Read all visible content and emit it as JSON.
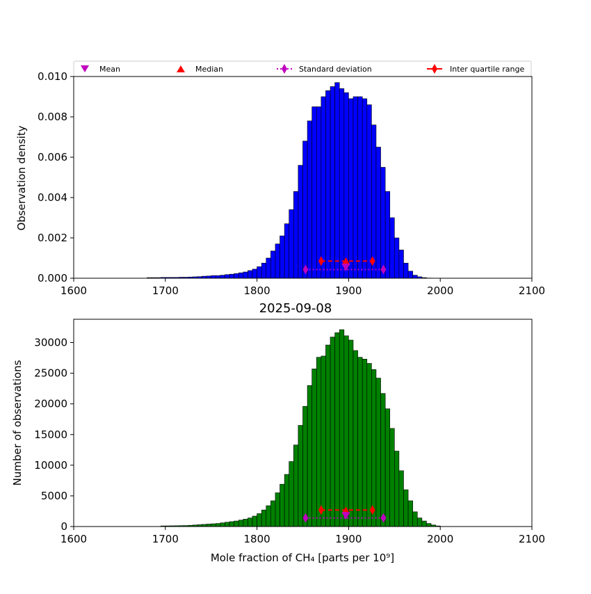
{
  "chart_data": [
    {
      "type": "bar",
      "variant": "histogram",
      "title": "",
      "xlabel": "",
      "ylabel": "Observation density",
      "xlim": [
        1600,
        2100
      ],
      "ylim": [
        0,
        0.01
      ],
      "xticks": [
        "1600",
        "1700",
        "1800",
        "1900",
        "2000",
        "2100"
      ],
      "yticks": [
        "0.000",
        "0.002",
        "0.004",
        "0.006",
        "0.008",
        "0.010"
      ],
      "bar_color": "#0000ff",
      "bin_width": 5,
      "bin_start": 1680,
      "values": [
        3e-05,
        3e-05,
        3e-05,
        4e-05,
        4e-05,
        4e-05,
        4e-05,
        5e-05,
        5e-05,
        6e-05,
        7e-05,
        8e-05,
        0.0001,
        0.00011,
        0.00013,
        0.00013,
        0.00015,
        0.00018,
        0.0002,
        0.00023,
        0.00027,
        0.00031,
        0.00038,
        0.00045,
        0.00057,
        0.00075,
        0.001,
        0.00135,
        0.0017,
        0.0021,
        0.0027,
        0.0034,
        0.0043,
        0.0056,
        0.0068,
        0.0078,
        0.0085,
        0.0085,
        0.009,
        0.0093,
        0.0095,
        0.0097,
        0.0094,
        0.0092,
        0.0089,
        0.009,
        0.009,
        0.0089,
        0.0086,
        0.0076,
        0.0065,
        0.0055,
        0.0043,
        0.003,
        0.002,
        0.0014,
        0.00075,
        0.00035,
        0.00015,
        7e-05,
        3e-05,
        1e-05
      ],
      "markers": {
        "mean": {
          "x": 1897,
          "y": 0.00055
        },
        "median": {
          "x": 1897,
          "y": 0.00083
        },
        "std": {
          "x": [
            1853,
            1938
          ],
          "y": 0.00043
        },
        "iqr": {
          "x": [
            1870,
            1926
          ],
          "y": 0.00085
        }
      }
    },
    {
      "type": "bar",
      "variant": "histogram",
      "title": "2025-09-08",
      "xlabel": "Mole fraction of CH₄ [parts per 10⁹]",
      "ylabel": "Number of observations",
      "xlim": [
        1600,
        2100
      ],
      "ylim": [
        0,
        33800
      ],
      "xticks": [
        "1600",
        "1700",
        "1800",
        "1900",
        "2000",
        "2100"
      ],
      "yticks": [
        "0",
        "5000",
        "10000",
        "15000",
        "20000",
        "25000",
        "30000"
      ],
      "bar_color": "#008000",
      "bin_width": 5,
      "bin_start": 1695,
      "values": [
        100,
        110,
        120,
        130,
        150,
        160,
        200,
        250,
        300,
        350,
        400,
        450,
        500,
        600,
        700,
        800,
        900,
        1050,
        1200,
        1400,
        1700,
        2100,
        2700,
        3400,
        4200,
        5500,
        6900,
        8500,
        10600,
        13300,
        16500,
        19600,
        23000,
        25700,
        27600,
        27800,
        29600,
        30900,
        31600,
        32100,
        31100,
        30400,
        28700,
        27600,
        27300,
        26600,
        25600,
        24200,
        21700,
        19200,
        16000,
        12300,
        9100,
        6000,
        4200,
        2400,
        1400,
        900,
        500,
        250,
        100
      ],
      "markers": {
        "mean": {
          "x": 1897,
          "y": 1800
        },
        "median": {
          "x": 1897,
          "y": 2600
        },
        "std": {
          "x": [
            1853,
            1938
          ],
          "y": 1400
        },
        "iqr": {
          "x": [
            1870,
            1926
          ],
          "y": 2700
        }
      }
    }
  ],
  "legend": {
    "placement": "top",
    "items": [
      {
        "label": "Mean",
        "marker": "triangle-down",
        "color": "#bf00bf"
      },
      {
        "label": "Median",
        "marker": "triangle-up",
        "color": "#ff0000"
      },
      {
        "label": "Standard deviation",
        "marker": "thin-diamond",
        "color": "#bf00bf",
        "line": "dotted"
      },
      {
        "label": "Inter quartile range",
        "marker": "thin-diamond",
        "color": "#ff0000",
        "line": "solid"
      }
    ]
  }
}
